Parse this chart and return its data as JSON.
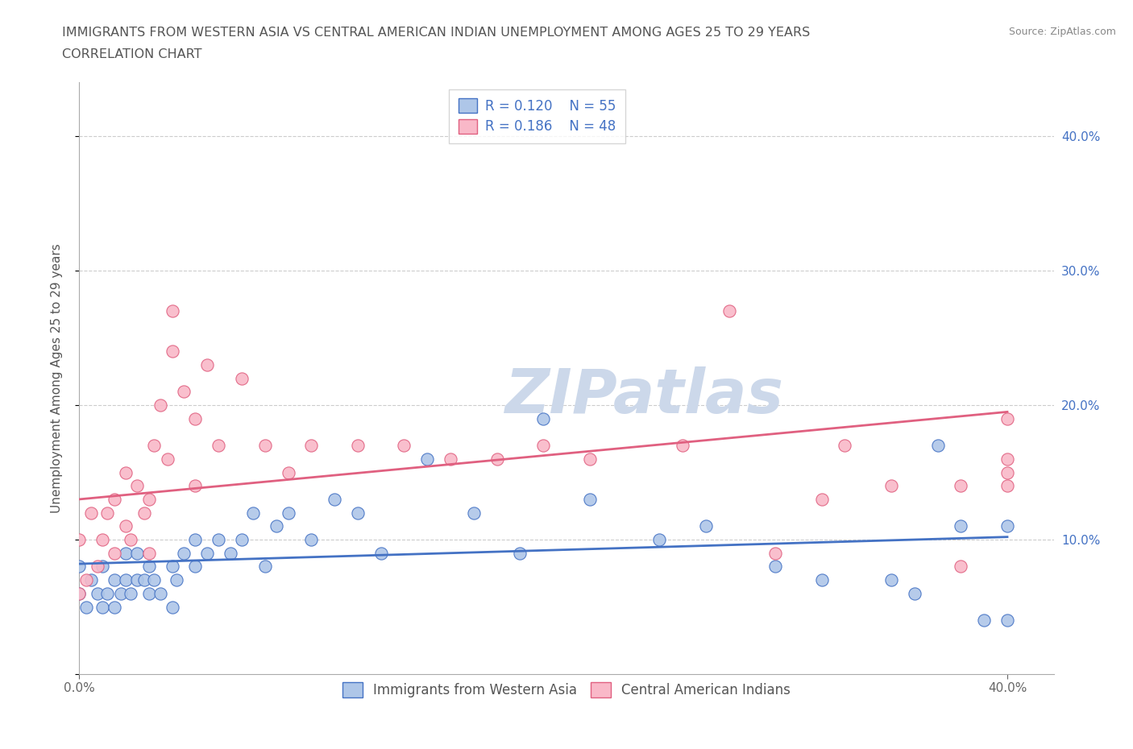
{
  "title_line1": "IMMIGRANTS FROM WESTERN ASIA VS CENTRAL AMERICAN INDIAN UNEMPLOYMENT AMONG AGES 25 TO 29 YEARS",
  "title_line2": "CORRELATION CHART",
  "source_text": "Source: ZipAtlas.com",
  "ylabel": "Unemployment Among Ages 25 to 29 years",
  "xlim": [
    0.0,
    0.42
  ],
  "ylim": [
    0.0,
    0.44
  ],
  "xtick_positions": [
    0.0,
    0.4
  ],
  "xticklabels": [
    "0.0%",
    "40.0%"
  ],
  "ytick_positions": [
    0.0,
    0.1,
    0.2,
    0.3,
    0.4
  ],
  "ytick_labels_right": [
    "",
    "10.0%",
    "20.0%",
    "30.0%",
    "40.0%"
  ],
  "grid_yticks": [
    0.1,
    0.2,
    0.3,
    0.4
  ],
  "legend_r1": "R = 0.120",
  "legend_n1": "N = 55",
  "legend_r2": "R = 0.186",
  "legend_n2": "N = 48",
  "color_blue_fill": "#aec6e8",
  "color_blue_edge": "#4472C4",
  "color_pink_fill": "#f9b8c8",
  "color_pink_edge": "#e06080",
  "line_color_blue": "#4472C4",
  "line_color_pink": "#e06080",
  "watermark": "ZIPatlas",
  "watermark_color": "#ccd8ea",
  "blue_x": [
    0.0,
    0.0,
    0.003,
    0.005,
    0.008,
    0.01,
    0.01,
    0.012,
    0.015,
    0.015,
    0.018,
    0.02,
    0.02,
    0.022,
    0.025,
    0.025,
    0.028,
    0.03,
    0.03,
    0.032,
    0.035,
    0.04,
    0.04,
    0.042,
    0.045,
    0.05,
    0.05,
    0.055,
    0.06,
    0.065,
    0.07,
    0.075,
    0.08,
    0.085,
    0.09,
    0.1,
    0.11,
    0.12,
    0.13,
    0.15,
    0.17,
    0.19,
    0.2,
    0.22,
    0.25,
    0.27,
    0.3,
    0.32,
    0.35,
    0.36,
    0.37,
    0.38,
    0.39,
    0.4,
    0.4
  ],
  "blue_y": [
    0.06,
    0.08,
    0.05,
    0.07,
    0.06,
    0.05,
    0.08,
    0.06,
    0.05,
    0.07,
    0.06,
    0.07,
    0.09,
    0.06,
    0.07,
    0.09,
    0.07,
    0.06,
    0.08,
    0.07,
    0.06,
    0.05,
    0.08,
    0.07,
    0.09,
    0.08,
    0.1,
    0.09,
    0.1,
    0.09,
    0.1,
    0.12,
    0.08,
    0.11,
    0.12,
    0.1,
    0.13,
    0.12,
    0.09,
    0.16,
    0.12,
    0.09,
    0.19,
    0.13,
    0.1,
    0.11,
    0.08,
    0.07,
    0.07,
    0.06,
    0.17,
    0.11,
    0.04,
    0.11,
    0.04
  ],
  "pink_x": [
    0.0,
    0.0,
    0.003,
    0.005,
    0.008,
    0.01,
    0.012,
    0.015,
    0.015,
    0.02,
    0.02,
    0.022,
    0.025,
    0.028,
    0.03,
    0.03,
    0.032,
    0.035,
    0.038,
    0.04,
    0.04,
    0.045,
    0.05,
    0.05,
    0.055,
    0.06,
    0.07,
    0.08,
    0.09,
    0.1,
    0.12,
    0.14,
    0.16,
    0.18,
    0.2,
    0.22,
    0.26,
    0.28,
    0.3,
    0.32,
    0.33,
    0.35,
    0.38,
    0.38,
    0.4,
    0.4,
    0.4,
    0.4
  ],
  "pink_y": [
    0.06,
    0.1,
    0.07,
    0.12,
    0.08,
    0.1,
    0.12,
    0.09,
    0.13,
    0.11,
    0.15,
    0.1,
    0.14,
    0.12,
    0.09,
    0.13,
    0.17,
    0.2,
    0.16,
    0.24,
    0.27,
    0.21,
    0.14,
    0.19,
    0.23,
    0.17,
    0.22,
    0.17,
    0.15,
    0.17,
    0.17,
    0.17,
    0.16,
    0.16,
    0.17,
    0.16,
    0.17,
    0.27,
    0.09,
    0.13,
    0.17,
    0.14,
    0.14,
    0.08,
    0.16,
    0.14,
    0.15,
    0.19
  ],
  "blue_line_x": [
    0.0,
    0.4
  ],
  "blue_line_y": [
    0.082,
    0.102
  ],
  "pink_line_x": [
    0.0,
    0.4
  ],
  "pink_line_y": [
    0.13,
    0.195
  ],
  "legend_label1": "Immigrants from Western Asia",
  "legend_label2": "Central American Indians",
  "title_fontsize": 11.5,
  "source_fontsize": 9,
  "axis_label_fontsize": 11,
  "tick_fontsize": 11,
  "legend_fontsize": 12
}
